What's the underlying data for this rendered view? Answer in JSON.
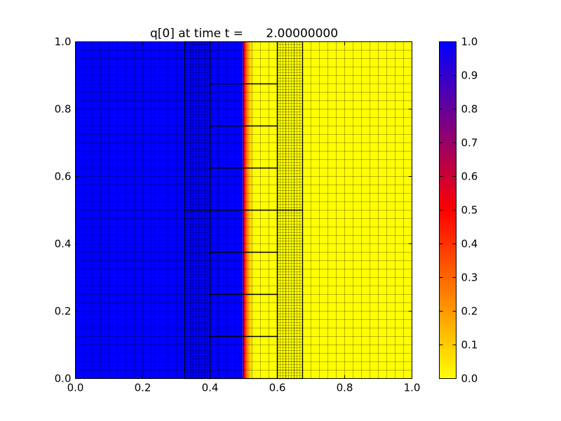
{
  "chart_data": [
    {
      "type": "heatmap",
      "title": "q[0] at time t =      2.00000000",
      "xlabel": "",
      "ylabel": "",
      "xlim": [
        0.0,
        1.0
      ],
      "ylim": [
        0.0,
        1.0
      ],
      "x_ticks": [
        "0.0",
        "0.2",
        "0.4",
        "0.6",
        "0.8",
        "1.0"
      ],
      "y_ticks": [
        "0.0",
        "0.2",
        "0.4",
        "0.6",
        "0.8",
        "1.0"
      ],
      "x_tick_values": [
        0.0,
        0.2,
        0.4,
        0.6,
        0.8,
        1.0
      ],
      "y_tick_values": [
        0.0,
        0.2,
        0.4,
        0.6,
        0.8,
        1.0
      ],
      "field": "q[0]",
      "time": "2.00000000",
      "front": {
        "high_value": 1.0,
        "low_value": 0.0,
        "x_front": 0.5,
        "edge_width": 0.02
      },
      "amr_patches": [
        {
          "level": 1,
          "x": [
            0.0,
            1.0
          ],
          "y": [
            0.0,
            1.0
          ],
          "dx": 0.025,
          "dy": 0.025
        },
        {
          "level": 2,
          "x": [
            0.325,
            0.4
          ],
          "y": [
            0.0,
            0.5
          ],
          "dx": 0.00833,
          "dy": 0.00833
        },
        {
          "level": 2,
          "x": [
            0.325,
            0.4
          ],
          "y": [
            0.5,
            1.0
          ],
          "dx": 0.00833,
          "dy": 0.00833
        },
        {
          "level": 2,
          "x": [
            0.6,
            0.675
          ],
          "y": [
            0.0,
            0.5
          ],
          "dx": 0.00833,
          "dy": 0.00833
        },
        {
          "level": 2,
          "x": [
            0.6,
            0.675
          ],
          "y": [
            0.5,
            1.0
          ],
          "dx": 0.00833,
          "dy": 0.00833
        },
        {
          "level": 3,
          "x": [
            0.4,
            0.6
          ],
          "y": [
            0.0,
            0.125
          ],
          "dx": null,
          "dy": null
        },
        {
          "level": 3,
          "x": [
            0.4,
            0.6
          ],
          "y": [
            0.125,
            0.25
          ],
          "dx": null,
          "dy": null
        },
        {
          "level": 3,
          "x": [
            0.4,
            0.6
          ],
          "y": [
            0.25,
            0.375
          ],
          "dx": null,
          "dy": null
        },
        {
          "level": 3,
          "x": [
            0.4,
            0.6
          ],
          "y": [
            0.375,
            0.5
          ],
          "dx": null,
          "dy": null
        },
        {
          "level": 3,
          "x": [
            0.4,
            0.6
          ],
          "y": [
            0.5,
            0.625
          ],
          "dx": null,
          "dy": null
        },
        {
          "level": 3,
          "x": [
            0.4,
            0.6
          ],
          "y": [
            0.625,
            0.75
          ],
          "dx": null,
          "dy": null
        },
        {
          "level": 3,
          "x": [
            0.4,
            0.6
          ],
          "y": [
            0.75,
            0.875
          ],
          "dx": null,
          "dy": null
        },
        {
          "level": 3,
          "x": [
            0.4,
            0.6
          ],
          "y": [
            0.875,
            1.0
          ],
          "dx": null,
          "dy": null
        }
      ]
    },
    {
      "type": "colorbar",
      "range": [
        0.0,
        1.0
      ],
      "tick_labels": [
        "0.0",
        "0.1",
        "0.2",
        "0.3",
        "0.4",
        "0.5",
        "0.6",
        "0.7",
        "0.8",
        "0.9",
        "1.0"
      ],
      "tick_values": [
        0.0,
        0.1,
        0.2,
        0.3,
        0.4,
        0.5,
        0.6,
        0.7,
        0.8,
        0.9,
        1.0
      ],
      "colormap": [
        {
          "value": 0.0,
          "color": "#ffff00"
        },
        {
          "value": 0.5,
          "color": "#ff0000"
        },
        {
          "value": 1.0,
          "color": "#0000ff"
        }
      ]
    }
  ],
  "colors": {
    "high": "#0000ff",
    "low": "#ffff00",
    "mid": "#ff0000",
    "grid": "#000000",
    "background": "#ffffff"
  }
}
